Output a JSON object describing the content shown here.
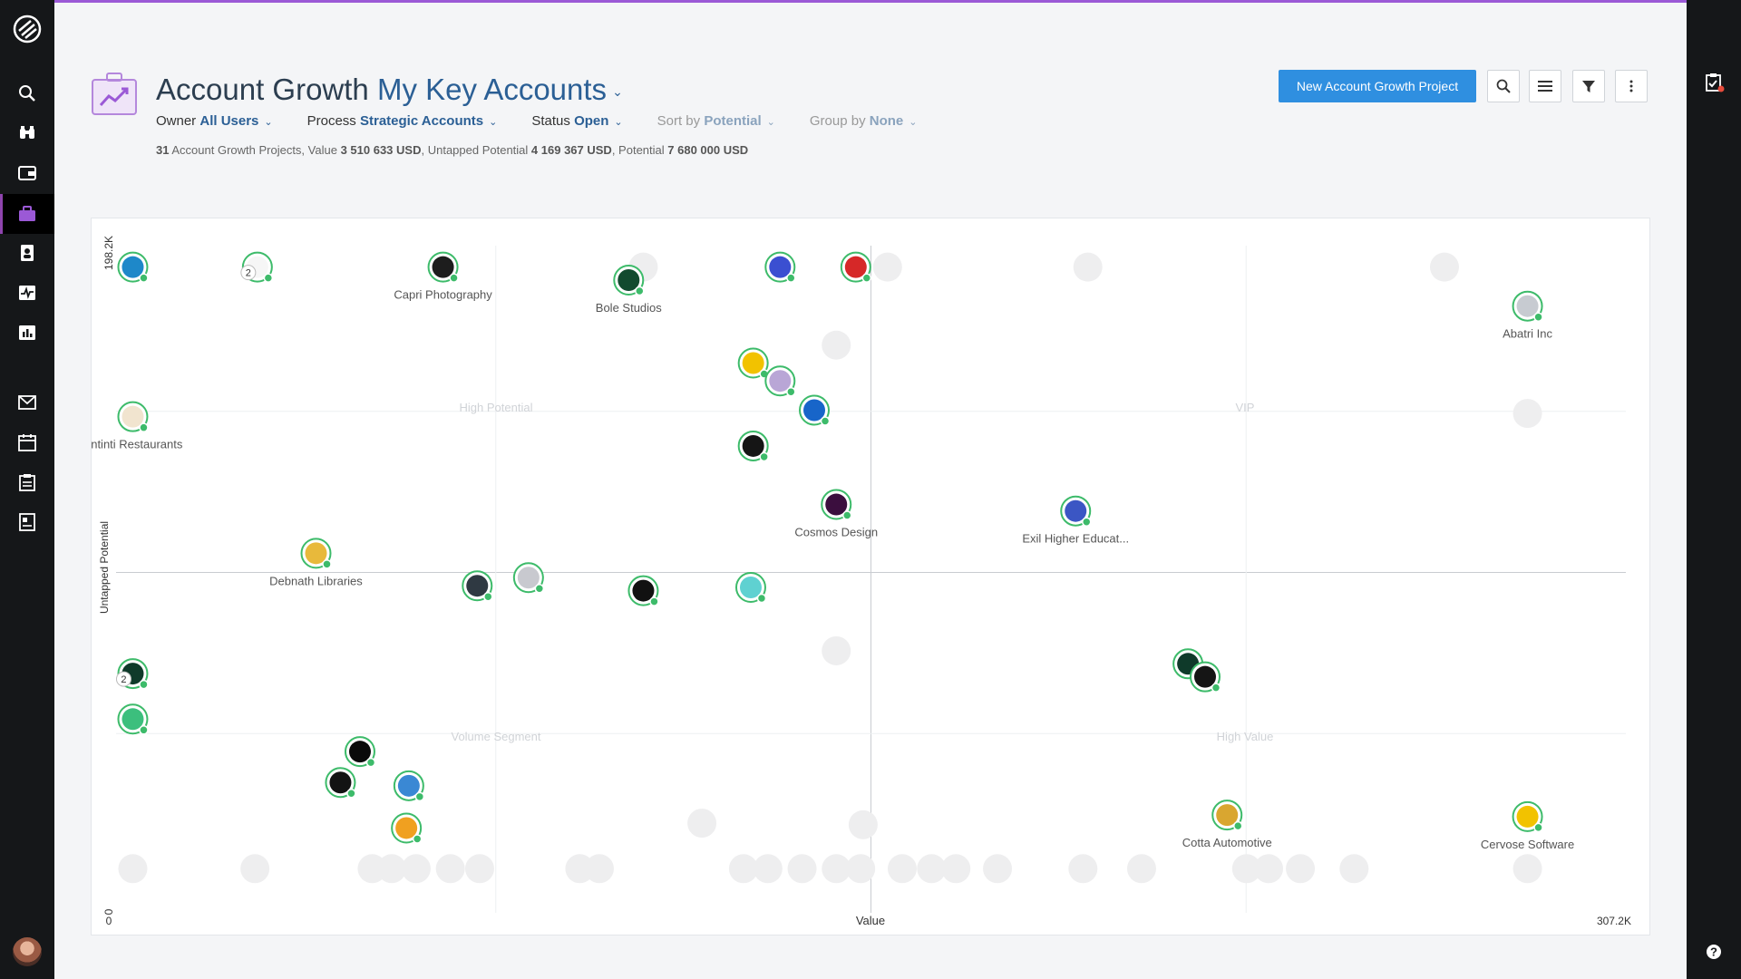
{
  "header": {
    "title_prefix": "Account Growth",
    "title_view": "My Key Accounts",
    "new_button_label": "New Account Growth Project"
  },
  "filters": [
    {
      "label": "Owner",
      "value": "All Users",
      "dim": false
    },
    {
      "label": "Process",
      "value": "Strategic Accounts",
      "dim": false
    },
    {
      "label": "Status",
      "value": "Open",
      "dim": false
    },
    {
      "label": "Sort by",
      "value": "Potential",
      "dim": true
    },
    {
      "label": "Group by",
      "value": "None",
      "dim": true
    }
  ],
  "summary": {
    "count": "31",
    "count_text": "Account Growth Projects, Value",
    "value": "3 510 633 USD",
    "untapped_text": ", Untapped Potential",
    "untapped": "4 169 367 USD",
    "potential_text": ", Potential",
    "potential": "7 680 000 USD"
  },
  "icons": {
    "logo": "logo-icon",
    "nav": [
      "search-icon",
      "binoculars-icon",
      "wallet-icon",
      "briefcase-icon",
      "contacts-icon",
      "activity-icon",
      "reports-icon",
      "mail-icon",
      "calendar-icon",
      "tasks-icon",
      "forms-icon"
    ],
    "toolbar": [
      "search-icon",
      "list-icon",
      "filter-icon",
      "more-icon"
    ],
    "right": [
      "checklist-alert-icon",
      "help-icon"
    ]
  },
  "colors": {
    "accent": "#2f8fe0",
    "brand": "#9b59d6",
    "ring": "#3dbb6a"
  },
  "chart_data": {
    "type": "scatter",
    "xlabel": "Value",
    "ylabel": "Untapped Potential",
    "x_min_label": "0",
    "x_max_label": "307.2K",
    "y_min_label": "0",
    "y_max_label": "198.2K",
    "xlim": [
      0,
      307200
    ],
    "ylim": [
      0,
      198200
    ],
    "quadrants": [
      "High Potential",
      "VIP",
      "Volume Segment",
      "High Value"
    ],
    "points": [
      {
        "x": 2500,
        "y": 193000,
        "label": "",
        "bg": "#1e88c9"
      },
      {
        "x": 28000,
        "y": 193000,
        "label": "",
        "bg": "#f6f6f6",
        "count": "2"
      },
      {
        "x": 66000,
        "y": 193000,
        "label": "Capri Photography",
        "bg": "#1d1d1d"
      },
      {
        "x": 104000,
        "y": 189000,
        "label": "Bole Studios",
        "bg": "#124a2e"
      },
      {
        "x": 135000,
        "y": 193000,
        "label": "",
        "bg": "#3b4fd1"
      },
      {
        "x": 150500,
        "y": 193000,
        "label": "",
        "bg": "#d62828"
      },
      {
        "x": 288000,
        "y": 181000,
        "label": "Abatri Inc",
        "bg": "#c7cbd1"
      },
      {
        "x": 129500,
        "y": 163500,
        "label": "",
        "bg": "#f2c200"
      },
      {
        "x": 135000,
        "y": 158000,
        "label": "",
        "bg": "#b9a6d6"
      },
      {
        "x": 142000,
        "y": 149000,
        "label": "",
        "bg": "#1765c9"
      },
      {
        "x": 2500,
        "y": 147000,
        "label": "Antinti Restaurants",
        "bg": "#f1e4cf"
      },
      {
        "x": 129500,
        "y": 138000,
        "label": "",
        "bg": "#151515"
      },
      {
        "x": 146500,
        "y": 120000,
        "label": "Cosmos Design",
        "bg": "#3b0e3e"
      },
      {
        "x": 195500,
        "y": 118000,
        "label": "Exil Higher Educat...",
        "bg": "#3b56c4"
      },
      {
        "x": 40000,
        "y": 105000,
        "label": "Debnath Libraries",
        "bg": "#e8b93b"
      },
      {
        "x": 73000,
        "y": 95000,
        "label": "",
        "bg": "#2f3942"
      },
      {
        "x": 83500,
        "y": 97500,
        "label": "",
        "bg": "#c8c9cf"
      },
      {
        "x": 107000,
        "y": 93500,
        "label": "",
        "bg": "#111"
      },
      {
        "x": 129000,
        "y": 94500,
        "label": "",
        "bg": "#5fd1d1"
      },
      {
        "x": 2500,
        "y": 68000,
        "label": "",
        "bg": "#0f3a2a",
        "count": "2"
      },
      {
        "x": 2500,
        "y": 54000,
        "label": "",
        "bg": "#3cbf7d"
      },
      {
        "x": 218500,
        "y": 71000,
        "label": "",
        "bg": "#0f3a2a"
      },
      {
        "x": 222000,
        "y": 67000,
        "label": "",
        "bg": "#151515"
      },
      {
        "x": 49000,
        "y": 44000,
        "label": "",
        "bg": "#0a0a0a"
      },
      {
        "x": 45000,
        "y": 34500,
        "label": "",
        "bg": "#131313"
      },
      {
        "x": 59000,
        "y": 33500,
        "label": "",
        "bg": "#3a88d4"
      },
      {
        "x": 58500,
        "y": 20500,
        "label": "",
        "bg": "#f0a020"
      },
      {
        "x": 226500,
        "y": 24500,
        "label": "Cotta Automotive",
        "bg": "#d9a630"
      },
      {
        "x": 288000,
        "y": 24000,
        "label": "Cervose Software",
        "bg": "#f2c200"
      }
    ],
    "placeholders": [
      {
        "x": 107000,
        "y": 193000
      },
      {
        "x": 157000,
        "y": 193000
      },
      {
        "x": 198000,
        "y": 193000
      },
      {
        "x": 271000,
        "y": 193000
      },
      {
        "x": 146500,
        "y": 169000
      },
      {
        "x": 288000,
        "y": 148000
      },
      {
        "x": 146500,
        "y": 75000
      },
      {
        "x": 119000,
        "y": 22000
      },
      {
        "x": 152000,
        "y": 21500
      },
      {
        "x": 2500,
        "y": 8000
      },
      {
        "x": 27500,
        "y": 8000
      },
      {
        "x": 51500,
        "y": 8000
      },
      {
        "x": 55500,
        "y": 8000
      },
      {
        "x": 60500,
        "y": 8000
      },
      {
        "x": 67500,
        "y": 8000
      },
      {
        "x": 73500,
        "y": 8000
      },
      {
        "x": 94000,
        "y": 8000
      },
      {
        "x": 98000,
        "y": 8000
      },
      {
        "x": 127500,
        "y": 8000
      },
      {
        "x": 132500,
        "y": 8000
      },
      {
        "x": 139500,
        "y": 8000
      },
      {
        "x": 146500,
        "y": 8000
      },
      {
        "x": 151500,
        "y": 8000
      },
      {
        "x": 160000,
        "y": 8000
      },
      {
        "x": 166000,
        "y": 8000
      },
      {
        "x": 171000,
        "y": 8000
      },
      {
        "x": 179500,
        "y": 8000
      },
      {
        "x": 197000,
        "y": 8000
      },
      {
        "x": 209000,
        "y": 8000
      },
      {
        "x": 230500,
        "y": 8000
      },
      {
        "x": 235000,
        "y": 8000
      },
      {
        "x": 241500,
        "y": 8000
      },
      {
        "x": 252500,
        "y": 8000
      },
      {
        "x": 288000,
        "y": 8000
      }
    ]
  }
}
